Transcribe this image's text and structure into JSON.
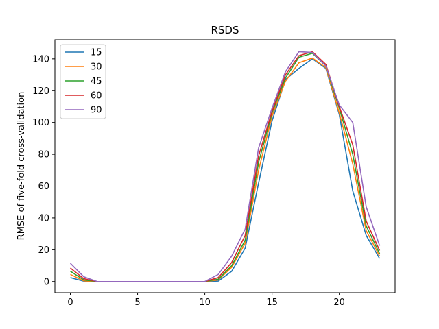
{
  "chart_data": {
    "type": "line",
    "title": "RSDS",
    "xlabel": "",
    "ylabel": "RMSE of five-fold cross-validation",
    "xlim": [
      -1.15,
      24.15
    ],
    "ylim": [
      -7,
      152
    ],
    "xticks": [
      0,
      5,
      10,
      15,
      20
    ],
    "yticks": [
      0,
      20,
      40,
      60,
      80,
      100,
      120,
      140
    ],
    "grid": false,
    "legend_position": "top-left",
    "x": [
      0,
      1,
      2,
      3,
      4,
      5,
      6,
      7,
      8,
      9,
      10,
      11,
      12,
      13,
      14,
      15,
      16,
      17,
      18,
      19,
      20,
      21,
      22,
      23
    ],
    "series": [
      {
        "name": "15",
        "color": "#1f77b4",
        "values": [
          2.5,
          0.2,
          0,
          0,
          0,
          0,
          0,
          0,
          0,
          0,
          0,
          0.3,
          6.5,
          21,
          62,
          101,
          127,
          134,
          140,
          134,
          105,
          57,
          29,
          14.5
        ]
      },
      {
        "name": "30",
        "color": "#ff7f0e",
        "values": [
          4.5,
          0.4,
          0,
          0,
          0,
          0,
          0,
          0,
          0,
          0,
          0,
          1,
          9,
          24,
          70,
          104,
          126,
          137.5,
          140.5,
          134.5,
          106,
          74,
          32,
          16
        ]
      },
      {
        "name": "45",
        "color": "#2ca02c",
        "values": [
          6.5,
          1,
          0,
          0,
          0,
          0,
          0,
          0,
          0,
          0,
          0,
          1.5,
          10,
          26,
          75,
          106,
          128,
          141,
          143.5,
          135.5,
          109,
          80,
          35,
          17.5
        ]
      },
      {
        "name": "60",
        "color": "#d62728",
        "values": [
          8.5,
          1.8,
          0,
          0,
          0,
          0,
          0,
          0,
          0,
          0,
          0,
          2.5,
          12,
          29,
          79,
          107,
          130,
          142,
          144.5,
          136.5,
          110,
          86,
          38,
          19.5
        ]
      },
      {
        "name": "90",
        "color": "#9467bd",
        "values": [
          11.5,
          3,
          0,
          0,
          0,
          0,
          0,
          0,
          0,
          0,
          0,
          4.5,
          16,
          33,
          84,
          109,
          132,
          144.5,
          144,
          135.5,
          111,
          100,
          47,
          22.5
        ]
      }
    ]
  }
}
